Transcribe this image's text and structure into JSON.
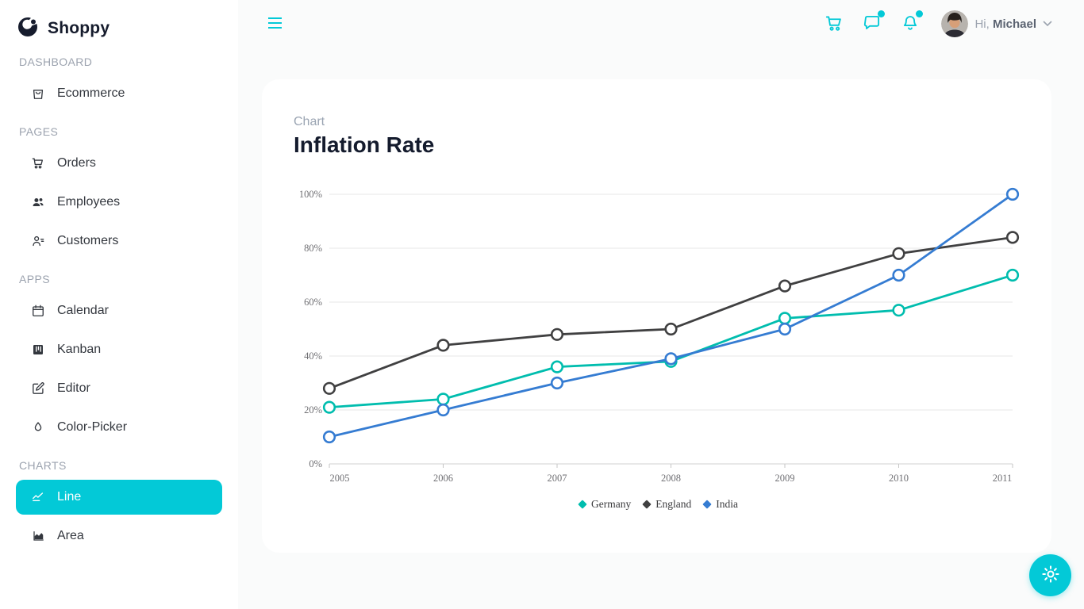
{
  "app": {
    "name": "Shoppy"
  },
  "sidebar": {
    "sections": [
      {
        "label": "DASHBOARD",
        "items": [
          {
            "label": "Ecommerce",
            "icon": "shopping-bag-icon",
            "active": false
          }
        ]
      },
      {
        "label": "PAGES",
        "items": [
          {
            "label": "Orders",
            "icon": "cart-icon",
            "active": false
          },
          {
            "label": "Employees",
            "icon": "employees-icon",
            "active": false
          },
          {
            "label": "Customers",
            "icon": "customers-icon",
            "active": false
          }
        ]
      },
      {
        "label": "APPS",
        "items": [
          {
            "label": "Calendar",
            "icon": "calendar-icon",
            "active": false
          },
          {
            "label": "Kanban",
            "icon": "kanban-icon",
            "active": false
          },
          {
            "label": "Editor",
            "icon": "editor-icon",
            "active": false
          },
          {
            "label": "Color-Picker",
            "icon": "color-picker-icon",
            "active": false
          }
        ]
      },
      {
        "label": "CHARTS",
        "items": [
          {
            "label": "Line",
            "icon": "line-chart-icon",
            "active": true
          },
          {
            "label": "Area",
            "icon": "area-chart-icon",
            "active": false
          }
        ]
      }
    ]
  },
  "header": {
    "greeting": "Hi,",
    "username": "Michael",
    "icons": [
      {
        "name": "cart-icon",
        "badge": false
      },
      {
        "name": "chat-icon",
        "badge": true
      },
      {
        "name": "bell-icon",
        "badge": true
      }
    ]
  },
  "page": {
    "category": "Chart",
    "title": "Inflation Rate"
  },
  "chart_data": {
    "type": "line",
    "title": "Inflation Rate",
    "x": [
      "2005",
      "2006",
      "2007",
      "2008",
      "2009",
      "2010",
      "2011"
    ],
    "series": [
      {
        "name": "Germany",
        "color": "#00BDAE",
        "values": [
          21,
          24,
          36,
          38,
          54,
          57,
          70
        ]
      },
      {
        "name": "England",
        "color": "#404041",
        "values": [
          28,
          44,
          48,
          50,
          66,
          78,
          84
        ]
      },
      {
        "name": "India",
        "color": "#357CD2",
        "values": [
          10,
          20,
          30,
          39,
          50,
          70,
          100
        ]
      }
    ],
    "ylim": [
      0,
      100
    ],
    "ytick_step": 20,
    "ytick_suffix": "%",
    "grid": true,
    "legend_position": "bottom",
    "marker": "circle"
  },
  "theme": {
    "accent": "#03C9D7",
    "main_bg": "#FAFBFB",
    "card_bg": "#FFFFFF"
  }
}
